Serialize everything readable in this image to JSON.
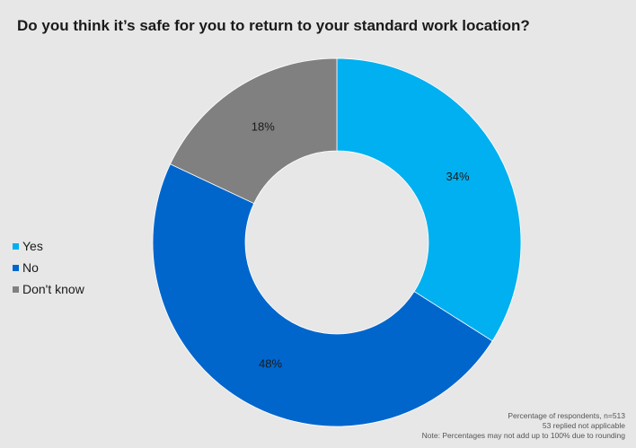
{
  "chart_data": {
    "type": "pie",
    "variant": "donut",
    "title": "Do you think it’s safe for you to return to your standard work location?",
    "categories": [
      "Yes",
      "No",
      "Don't know"
    ],
    "values": [
      34,
      48,
      18
    ],
    "data_labels": [
      "34%",
      "48%",
      "18%"
    ],
    "colors": [
      "#00b0f0",
      "#0066cc",
      "#808080"
    ],
    "legend_position": "left",
    "notes": [
      "Percentage of respondents, n=513",
      "53 replied not applicable",
      "Note: Percentages may not add up to 100% due to rounding"
    ]
  }
}
